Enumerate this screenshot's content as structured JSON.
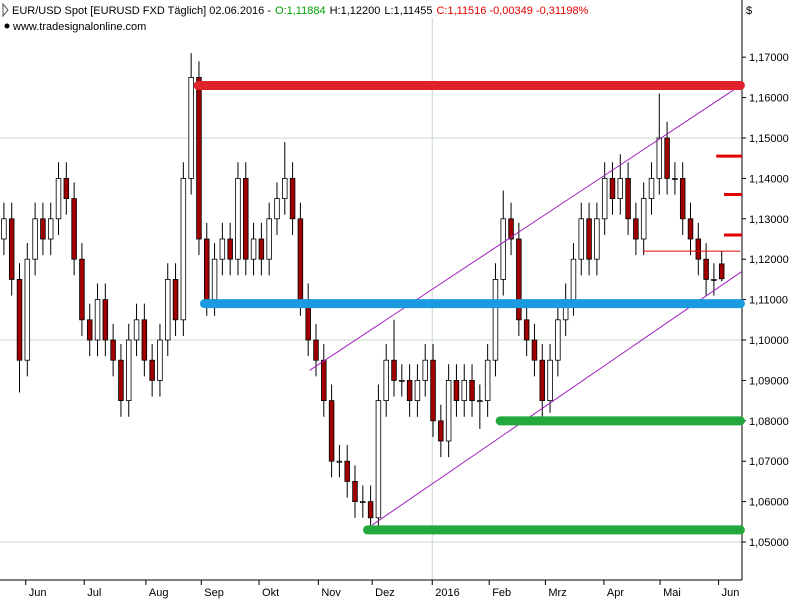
{
  "chart_data": {
    "type": "candlestick",
    "title_parts": [
      {
        "text": "EUR/USD Spot [EURUSD FXD  Täglich] 02.06.2016 -",
        "color": "#000000"
      },
      {
        "text": "O:1,11884",
        "color": "#00a000"
      },
      {
        "text": "H:1,12200",
        "color": "#000000"
      },
      {
        "text": "L:1,11455",
        "color": "#000000"
      },
      {
        "text": "C:1,11516 -0,00349 -0,31198%",
        "color": "#e00000"
      }
    ],
    "subtitle": "www.tradesignalonline.com",
    "y_unit": "$",
    "open": [
      1.125,
      1.13,
      1.115,
      1.095,
      1.12,
      1.13,
      1.125,
      1.13,
      1.14,
      1.135,
      1.12,
      1.105,
      1.1,
      1.11,
      1.1,
      1.095,
      1.085,
      1.1,
      1.105,
      1.095,
      1.09,
      1.1,
      1.115,
      1.105,
      1.14,
      1.165,
      1.125,
      1.11,
      1.12,
      1.125,
      1.12,
      1.14,
      1.12,
      1.125,
      1.12,
      1.13,
      1.135,
      1.14,
      1.13,
      1.11,
      1.1,
      1.095,
      1.085,
      1.07,
      1.07,
      1.065,
      1.06,
      1.06,
      1.056,
      1.085,
      1.095,
      1.09,
      1.09,
      1.085,
      1.09,
      1.095,
      1.08,
      1.075,
      1.09,
      1.085,
      1.09,
      1.085,
      1.085,
      1.095,
      1.115,
      1.13,
      1.125,
      1.105,
      1.1,
      1.095,
      1.085,
      1.095,
      1.105,
      1.11,
      1.12,
      1.13,
      1.12,
      1.13,
      1.14,
      1.135,
      1.14,
      1.13,
      1.125,
      1.135,
      1.14,
      1.15,
      1.14,
      1.14,
      1.13,
      1.125,
      1.12,
      1.115,
      1.11884
    ],
    "high": [
      1.134,
      1.134,
      1.119,
      1.124,
      1.134,
      1.134,
      1.134,
      1.144,
      1.144,
      1.139,
      1.124,
      1.109,
      1.114,
      1.114,
      1.104,
      1.099,
      1.104,
      1.109,
      1.109,
      1.099,
      1.104,
      1.119,
      1.119,
      1.144,
      1.171,
      1.169,
      1.129,
      1.124,
      1.129,
      1.129,
      1.144,
      1.144,
      1.129,
      1.129,
      1.134,
      1.139,
      1.149,
      1.144,
      1.134,
      1.114,
      1.104,
      1.099,
      1.089,
      1.074,
      1.074,
      1.069,
      1.064,
      1.064,
      1.089,
      1.099,
      1.105,
      1.094,
      1.094,
      1.094,
      1.099,
      1.099,
      1.084,
      1.094,
      1.094,
      1.094,
      1.094,
      1.089,
      1.099,
      1.119,
      1.137,
      1.134,
      1.129,
      1.109,
      1.104,
      1.099,
      1.099,
      1.109,
      1.114,
      1.124,
      1.134,
      1.134,
      1.134,
      1.144,
      1.144,
      1.146,
      1.144,
      1.134,
      1.139,
      1.144,
      1.161,
      1.154,
      1.144,
      1.144,
      1.134,
      1.129,
      1.124,
      1.119,
      1.122
    ],
    "low": [
      1.121,
      1.111,
      1.087,
      1.091,
      1.116,
      1.121,
      1.121,
      1.126,
      1.131,
      1.116,
      1.101,
      1.096,
      1.096,
      1.096,
      1.091,
      1.081,
      1.081,
      1.096,
      1.091,
      1.086,
      1.086,
      1.096,
      1.101,
      1.101,
      1.136,
      1.121,
      1.106,
      1.106,
      1.116,
      1.116,
      1.116,
      1.116,
      1.116,
      1.116,
      1.116,
      1.126,
      1.131,
      1.126,
      1.106,
      1.096,
      1.091,
      1.081,
      1.066,
      1.066,
      1.061,
      1.056,
      1.056,
      1.053,
      1.054,
      1.081,
      1.086,
      1.086,
      1.081,
      1.081,
      1.086,
      1.076,
      1.071,
      1.071,
      1.081,
      1.081,
      1.081,
      1.078,
      1.081,
      1.091,
      1.111,
      1.121,
      1.101,
      1.096,
      1.091,
      1.081,
      1.082,
      1.091,
      1.101,
      1.106,
      1.116,
      1.116,
      1.116,
      1.126,
      1.131,
      1.131,
      1.126,
      1.121,
      1.121,
      1.131,
      1.136,
      1.136,
      1.136,
      1.126,
      1.121,
      1.116,
      1.111,
      1.111,
      1.11455
    ],
    "close": [
      1.13,
      1.115,
      1.095,
      1.12,
      1.13,
      1.125,
      1.13,
      1.14,
      1.135,
      1.12,
      1.105,
      1.1,
      1.11,
      1.1,
      1.095,
      1.085,
      1.1,
      1.105,
      1.095,
      1.09,
      1.1,
      1.115,
      1.105,
      1.14,
      1.165,
      1.125,
      1.11,
      1.12,
      1.125,
      1.12,
      1.14,
      1.12,
      1.125,
      1.12,
      1.13,
      1.135,
      1.14,
      1.13,
      1.11,
      1.1,
      1.095,
      1.085,
      1.07,
      1.07,
      1.065,
      1.06,
      1.06,
      1.056,
      1.085,
      1.095,
      1.09,
      1.09,
      1.085,
      1.09,
      1.095,
      1.08,
      1.075,
      1.09,
      1.085,
      1.09,
      1.085,
      1.085,
      1.095,
      1.115,
      1.13,
      1.125,
      1.105,
      1.1,
      1.095,
      1.085,
      1.095,
      1.105,
      1.11,
      1.12,
      1.13,
      1.12,
      1.13,
      1.14,
      1.135,
      1.14,
      1.13,
      1.125,
      1.135,
      1.14,
      1.15,
      1.14,
      1.14,
      1.13,
      1.125,
      1.12,
      1.115,
      1.115,
      1.11516
    ],
    "up_color": "#ffffff",
    "down_color": "#a00000",
    "xlim": [
      0,
      95.1
    ],
    "xticks": [
      {
        "value": 3.3,
        "label": "Jun"
      },
      {
        "value": 10.8,
        "label": "Jul"
      },
      {
        "value": 18.7,
        "label": "Aug"
      },
      {
        "value": 25.8,
        "label": "Sep"
      },
      {
        "value": 33.2,
        "label": "Okt"
      },
      {
        "value": 40.8,
        "label": "Nov"
      },
      {
        "value": 47.7,
        "label": "Dez"
      },
      {
        "value": 55.4,
        "label": "2016"
      },
      {
        "value": 62.7,
        "label": "Feb"
      },
      {
        "value": 69.9,
        "label": "Mrz"
      },
      {
        "value": 77.4,
        "label": "Apr"
      },
      {
        "value": 84.6,
        "label": "Mai"
      },
      {
        "value": 92.1,
        "label": "Jun"
      }
    ],
    "ylim": [
      1.0406,
      1.1797
    ],
    "yticks": [
      {
        "value": 1.05,
        "label": "1,05000"
      },
      {
        "value": 1.06,
        "label": "1,06000"
      },
      {
        "value": 1.07,
        "label": "1,07000"
      },
      {
        "value": 1.08,
        "label": "1,08000"
      },
      {
        "value": 1.09,
        "label": "1,09000"
      },
      {
        "value": 1.1,
        "label": "1,10000"
      },
      {
        "value": 1.11,
        "label": "1,11000"
      },
      {
        "value": 1.12,
        "label": "1,12000"
      },
      {
        "value": 1.13,
        "label": "1,13000"
      },
      {
        "value": 1.14,
        "label": "1,14000"
      },
      {
        "value": 1.15,
        "label": "1,15000"
      },
      {
        "value": 1.16,
        "label": "1,16000"
      },
      {
        "value": 1.17,
        "label": "1,17000"
      }
    ],
    "grid_y": [
      1.05,
      1.1,
      1.15
    ],
    "grid_x": [
      55.4
    ],
    "levels": [
      {
        "value": 1.163,
        "start": 25.4,
        "end": 94.9,
        "color": "#e0222a"
      },
      {
        "value": 1.109,
        "start": 26.2,
        "end": 94.9,
        "color": "#1a9be0"
      },
      {
        "value": 1.08,
        "start": 64.1,
        "end": 94.9,
        "color": "#22a83c"
      },
      {
        "value": 1.053,
        "start": 47.1,
        "end": 94.9,
        "color": "#22a83c"
      }
    ],
    "markers": [
      {
        "value": 1.1455,
        "start": 91.8,
        "end": 95.1,
        "color": "#e00000"
      },
      {
        "value": 1.136,
        "start": 92.8,
        "end": 95.1,
        "color": "#e00000"
      },
      {
        "value": 1.126,
        "start": 92.8,
        "end": 95.1,
        "color": "#e00000"
      }
    ],
    "thin_levels": [
      {
        "value": 1.122,
        "start": 82.4,
        "end": 94.9,
        "color": "#e00000"
      }
    ],
    "channel": [
      {
        "start": 39.7,
        "start_value": 1.0925,
        "end": 94.9,
        "end_value": 1.163,
        "color": "#a020c0"
      },
      {
        "start": 47.7,
        "start_value": 1.0542,
        "end": 95.1,
        "end_value": 1.117,
        "color": "#a020c0"
      }
    ]
  }
}
